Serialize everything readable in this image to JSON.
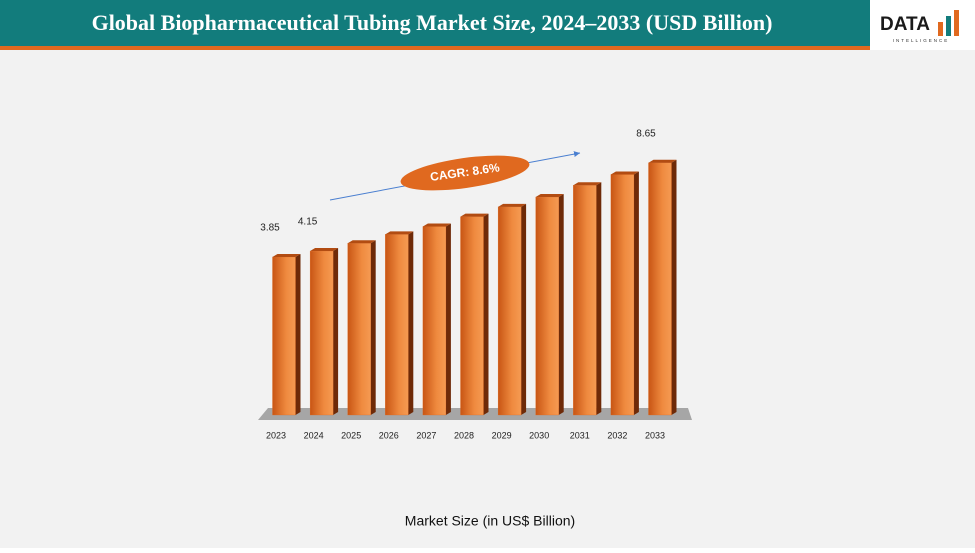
{
  "header": {
    "title": "Global Biopharmaceutical Tubing Market Size, 2024–2033 (USD Billion)",
    "logo": "DATA",
    "logo_subtitle": "INTELLIGENCE"
  },
  "chart_data": {
    "type": "bar",
    "x_label": "Market Size (in US$ Billion)",
    "annotation": "CAGR: 8.6%",
    "categories": [
      "2023",
      "2024",
      "2025",
      "2026",
      "2027",
      "2028",
      "2029",
      "2030",
      "2031",
      "2032",
      "2033"
    ],
    "values": [
      3.85,
      4.15,
      4.55,
      5.0,
      5.4,
      5.9,
      6.4,
      6.9,
      7.5,
      8.05,
      8.65
    ],
    "value_labels": [
      "3.85",
      "4.15",
      null,
      null,
      null,
      null,
      null,
      null,
      null,
      null,
      "8.65"
    ],
    "color": "#e0691f",
    "ylim": [
      -4.2,
      9.5
    ]
  }
}
